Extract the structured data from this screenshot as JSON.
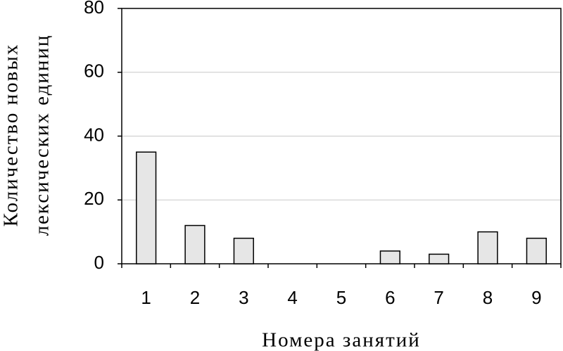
{
  "chart_data": {
    "type": "bar",
    "xlabel": "Номера занятий",
    "ylabel": [
      "Количество новых",
      "лексических единиц"
    ],
    "categories": [
      "1",
      "2",
      "3",
      "4",
      "5",
      "6",
      "7",
      "8",
      "9"
    ],
    "values": [
      35,
      12,
      8,
      0,
      0,
      4,
      3,
      10,
      8
    ],
    "color": "#e6e6e6",
    "ylim": [
      0,
      80
    ],
    "yticks": [
      0,
      20,
      40,
      60,
      80
    ],
    "grid": true
  }
}
